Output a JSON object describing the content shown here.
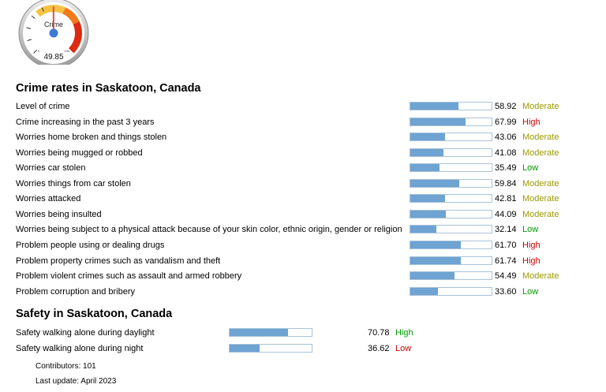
{
  "gauge": {
    "label": "Crime",
    "value": "49.85",
    "fraction": 0.4985,
    "min_label": "0",
    "max_label": "100"
  },
  "crime_section": {
    "title": "Crime rates in Saskatoon, Canada",
    "rows": [
      {
        "label": "Level of crime",
        "value": "58.92",
        "rating": "Moderate",
        "level": 0.5892
      },
      {
        "label": "Crime increasing in the past 3 years",
        "value": "67.99",
        "rating": "High",
        "level": 0.6799
      },
      {
        "label": "Worries home broken and things stolen",
        "value": "43.06",
        "rating": "Moderate",
        "level": 0.4306
      },
      {
        "label": "Worries being mugged or robbed",
        "value": "41.08",
        "rating": "Moderate",
        "level": 0.4108
      },
      {
        "label": "Worries car stolen",
        "value": "35.49",
        "rating": "Low",
        "level": 0.3549
      },
      {
        "label": "Worries things from car stolen",
        "value": "59.84",
        "rating": "Moderate",
        "level": 0.5984
      },
      {
        "label": "Worries attacked",
        "value": "42.81",
        "rating": "Moderate",
        "level": 0.4281
      },
      {
        "label": "Worries being insulted",
        "value": "44.09",
        "rating": "Moderate",
        "level": 0.4409
      },
      {
        "label": "Worries being subject to a physical attack because of your skin color, ethnic origin, gender or religion",
        "value": "32.14",
        "rating": "Low",
        "level": 0.3214
      },
      {
        "label": "Problem people using or dealing drugs",
        "value": "61.70",
        "rating": "High",
        "level": 0.617
      },
      {
        "label": "Problem property crimes such as vandalism and theft",
        "value": "61.74",
        "rating": "High",
        "level": 0.6174
      },
      {
        "label": "Problem violent crimes such as assault and armed robbery",
        "value": "54.49",
        "rating": "Moderate",
        "level": 0.5449
      },
      {
        "label": "Problem corruption and bribery",
        "value": "33.60",
        "rating": "Low",
        "level": 0.336
      }
    ]
  },
  "safety_section": {
    "title": "Safety in Saskatoon, Canada",
    "rows": [
      {
        "label": "Safety walking alone during daylight",
        "value": "70.78",
        "rating": "High",
        "level": 0.7078
      },
      {
        "label": "Safety walking alone during night",
        "value": "36.62",
        "rating": "Low",
        "level": 0.3662
      }
    ]
  },
  "footer": {
    "contributors": "Contributors: 101",
    "last_update": "Last update: April 2023"
  },
  "colors": {
    "crime_high": "#cc0000",
    "crime_moderate": "#999900",
    "crime_low": "#009900",
    "safety_high": "#009900",
    "safety_low": "#cc0000",
    "bar_fill": "#6ea3d2"
  }
}
